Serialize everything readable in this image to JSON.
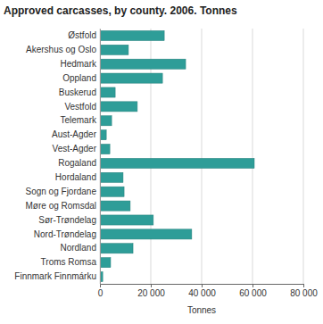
{
  "chart_data": {
    "type": "bar",
    "orientation": "horizontal",
    "title": "Approved carcasses, by county.  2006. Tonnes",
    "xlabel": "Tonnes",
    "categories": [
      "Østfold",
      "Akershus og Oslo",
      "Hedmark",
      "Oppland",
      "Buskerud",
      "Vestfold",
      "Telemark",
      "Aust-Agder",
      "Vest-Agder",
      "Rogaland",
      "Hordaland",
      "Sogn og Fjordane",
      "Møre og Romsdal",
      "Sør-Trøndelag",
      "Nord-Trøndelag",
      "Nordland",
      "Troms Romsa",
      "Finnmark Finnmárku"
    ],
    "values": [
      25300,
      11200,
      33700,
      24600,
      6000,
      14700,
      4600,
      2500,
      3900,
      60700,
      9100,
      9500,
      11900,
      21000,
      36100,
      13000,
      4200,
      1100
    ],
    "color": "#2e9d98",
    "xlim": [
      0,
      80000
    ],
    "xticks": [
      0,
      {
        "value": 20000,
        "label": "20 000"
      },
      {
        "value": 40000,
        "label": "40 000"
      },
      {
        "value": 60000,
        "label": "60 000"
      },
      {
        "value": 80000,
        "label": "80 000"
      }
    ],
    "grid": true
  }
}
